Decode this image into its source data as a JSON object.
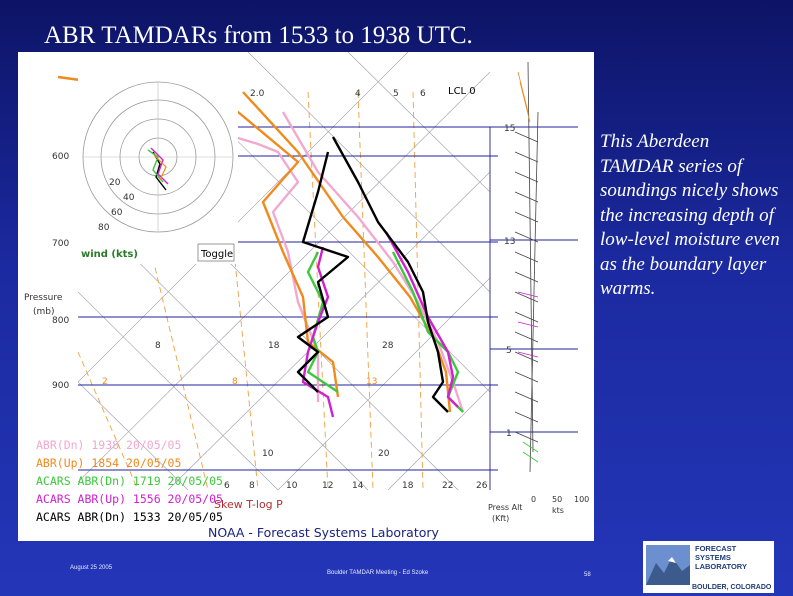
{
  "slide": {
    "title": "ABR TAMDARs from 1533 to 1938 UTC.",
    "caption": "This Aberdeen TAMDAR series of soundings nicely shows the increasing depth of low-level moisture even as the boundary layer warms.",
    "footer": {
      "date": "August 25 2005",
      "meeting": "Boulder TAMDAR Meeting - Ed Szoke",
      "page": "58"
    }
  },
  "diagram": {
    "lcl_label": "LCL 0",
    "pressure_labels": [
      "600",
      "700",
      "800",
      "900"
    ],
    "axis_title": "Pressure",
    "axis_unit": "(mb)",
    "mixing_ratio_labels": [
      "2.0",
      "4",
      "5",
      "6"
    ],
    "altitude_labels": [
      "15",
      "13",
      "5",
      "1"
    ],
    "isotherm_labels": [
      "8",
      "18",
      "28"
    ],
    "lower_isotherm_labels": [
      "10",
      "20"
    ],
    "left_labels": [
      "2",
      "8",
      "13"
    ],
    "temperature_ticks": [
      "6",
      "8",
      "10",
      "12",
      "14",
      "18",
      "22",
      "26"
    ],
    "hodograph": {
      "rings": [
        "20",
        "40",
        "60",
        "80"
      ],
      "wind_label": "wind (kts)",
      "toggle_label": "Toggle"
    },
    "legend": [
      {
        "label": "ABR(Dn) 1938 20/05/05",
        "color": "#f2a8cf"
      },
      {
        "label": "ABR(Up) 1854 20/05/05",
        "color": "#f08a1c"
      },
      {
        "label": "ACARS ABR(Dn) 1719 20/05/05",
        "color": "#3cc83c"
      },
      {
        "label": "ACARS ABR(Up) 1556 20/05/05",
        "color": "#d020d0"
      },
      {
        "label": "ACARS ABR(Dn) 1533 20/05/05",
        "color": "#000000"
      }
    ],
    "plot_name": "Skew T-log P",
    "credit": "NOAA - Forecast Systems Laboratory",
    "press_alt_label": "Press Alt",
    "press_alt_unit": "(Kft)",
    "wind_speed_ticks": [
      "0",
      "50",
      "100"
    ],
    "wind_speed_unit": "kts"
  },
  "logo": {
    "line1": "FORECAST",
    "line2": "SYSTEMS",
    "line3": "LABORATORY",
    "place": "BOULDER, COLORADO"
  }
}
